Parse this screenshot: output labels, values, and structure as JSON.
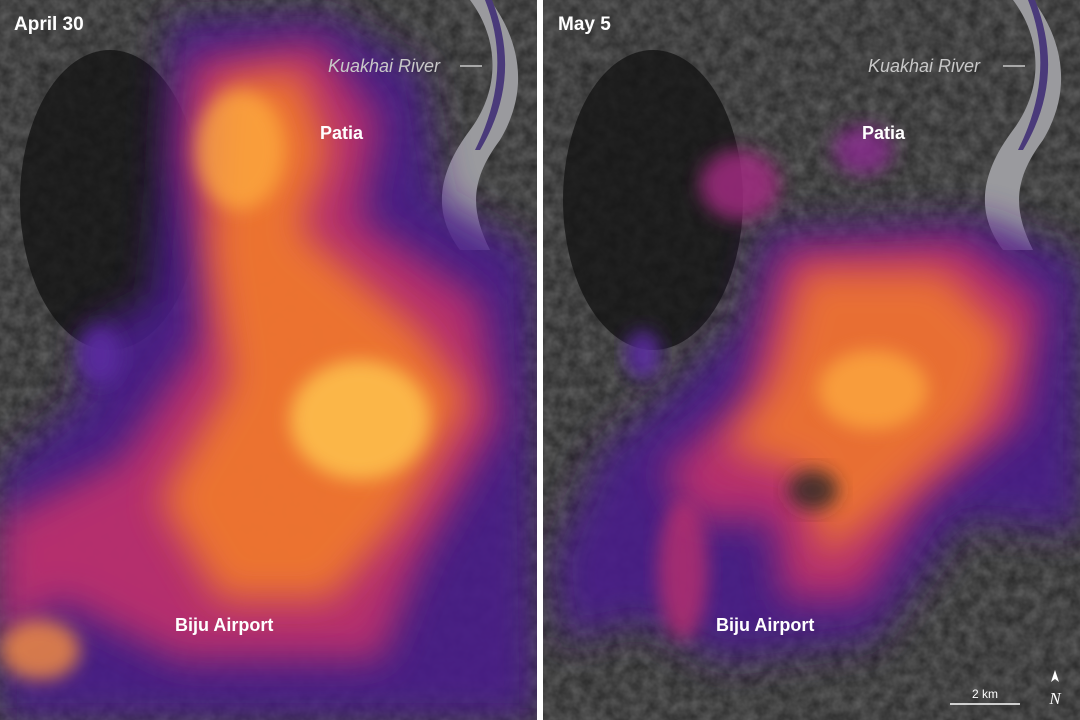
{
  "panels": [
    {
      "date": "April 30",
      "river": "Kuakhai River",
      "places": [
        "Patia",
        "Biju Airport"
      ]
    },
    {
      "date": "May 5",
      "river": "Kuakhai River",
      "places": [
        "Patia",
        "Biju Airport"
      ]
    }
  ],
  "scale_bar": "2 km",
  "north": "N"
}
